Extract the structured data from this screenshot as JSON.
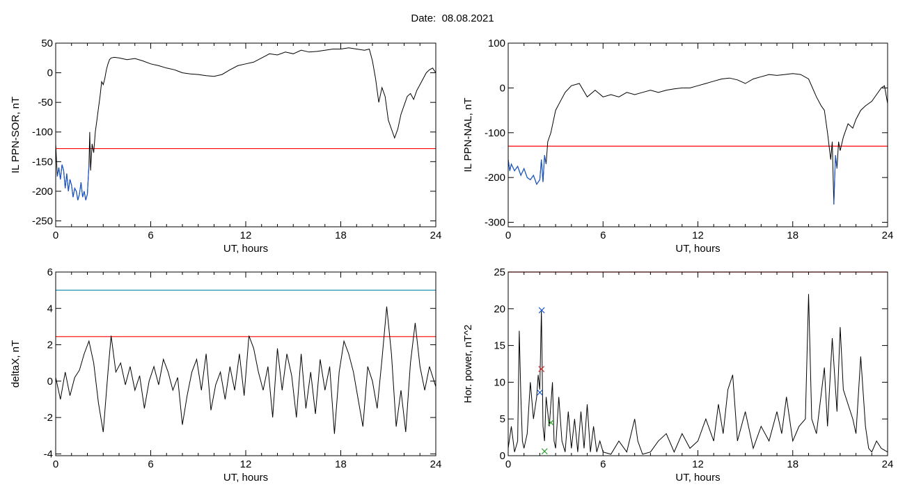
{
  "header": {
    "date_label": "Date:",
    "date_value": "08.08.2021"
  },
  "colors": {
    "threshold": "#ff0000",
    "highlight": "#1a56c8",
    "teal": "#1e8fb0",
    "green": "#2ca02c",
    "trace": "#000000"
  },
  "chart_data": [
    {
      "type": "line",
      "ylabel": "IL PPN-SOR, nT",
      "xlabel": "UT, hours",
      "xlim": [
        0,
        24
      ],
      "ylim": [
        -260,
        50
      ],
      "xticks": [
        0,
        6,
        12,
        18,
        24
      ],
      "yticks": [
        50,
        0,
        -50,
        -100,
        -150,
        -200,
        -250
      ],
      "threshold": -128,
      "highlight_below": -128,
      "series": [
        {
          "x": [
            0,
            0.1,
            0.2,
            0.3,
            0.4,
            0.5,
            0.6,
            0.7,
            0.8,
            0.9,
            1.0,
            1.1,
            1.2,
            1.3,
            1.4,
            1.5,
            1.6,
            1.7,
            1.8,
            1.9,
            2.0,
            2.1,
            2.15,
            2.2,
            2.3,
            2.4,
            2.5,
            2.6,
            2.7,
            2.8,
            2.9,
            3.0,
            3.1,
            3.2,
            3.3,
            3.4,
            3.5,
            3.7,
            4.0,
            4.5,
            5.0,
            5.5,
            6.0,
            6.5,
            7.0,
            7.5,
            8.0,
            8.5,
            9.0,
            9.5,
            10.0,
            10.5,
            11.0,
            11.5,
            12.0,
            12.5,
            13.0,
            13.5,
            14.0,
            14.5,
            15.0,
            15.5,
            16.0,
            16.5,
            17.0,
            17.5,
            18.0,
            18.5,
            19.0,
            19.5,
            19.8,
            20.0,
            20.2,
            20.4,
            20.6,
            20.8,
            21.0,
            21.2,
            21.4,
            21.6,
            21.8,
            22.0,
            22.2,
            22.4,
            22.6,
            22.8,
            23.0,
            23.2,
            23.4,
            23.6,
            23.8,
            24.0
          ],
          "y": [
            -120,
            -175,
            -160,
            -180,
            -155,
            -165,
            -195,
            -170,
            -200,
            -180,
            -190,
            -210,
            -195,
            -200,
            -215,
            -205,
            -185,
            -210,
            -200,
            -215,
            -205,
            -155,
            -100,
            -165,
            -120,
            -135,
            -100,
            -80,
            -60,
            -40,
            -15,
            -20,
            -10,
            5,
            15,
            22,
            25,
            26,
            25,
            22,
            24,
            20,
            15,
            12,
            8,
            5,
            0,
            -2,
            -3,
            -5,
            -6,
            -3,
            5,
            12,
            15,
            18,
            25,
            32,
            30,
            35,
            32,
            38,
            35,
            36,
            38,
            40,
            40,
            42,
            40,
            38,
            40,
            20,
            -10,
            -50,
            -25,
            -40,
            -80,
            -95,
            -110,
            -95,
            -70,
            -55,
            -40,
            -35,
            -45,
            -30,
            -20,
            -10,
            0,
            5,
            8,
            0
          ]
        }
      ]
    },
    {
      "type": "line",
      "ylabel": "IL PPN-NAL, nT",
      "xlabel": "UT, hours",
      "xlim": [
        0,
        24
      ],
      "ylim": [
        -310,
        100
      ],
      "xticks": [
        0,
        6,
        12,
        18,
        24
      ],
      "yticks": [
        100,
        0,
        -100,
        -200,
        -300
      ],
      "threshold": -130,
      "highlight_below": -130,
      "series": [
        {
          "x": [
            0,
            0.1,
            0.2,
            0.4,
            0.6,
            0.8,
            1.0,
            1.2,
            1.4,
            1.6,
            1.8,
            2.0,
            2.1,
            2.2,
            2.3,
            2.4,
            2.5,
            2.7,
            3.0,
            3.3,
            3.6,
            4.0,
            4.5,
            5.0,
            5.5,
            6.0,
            6.5,
            7.0,
            7.5,
            8.0,
            8.5,
            9.0,
            9.5,
            10.0,
            10.5,
            11.0,
            11.5,
            12.0,
            12.5,
            13.0,
            13.5,
            14.0,
            14.5,
            15.0,
            15.5,
            16.0,
            16.5,
            17.0,
            17.5,
            18.0,
            18.5,
            19.0,
            19.5,
            19.8,
            20.0,
            20.2,
            20.4,
            20.5,
            20.6,
            20.7,
            20.8,
            20.9,
            21.0,
            21.2,
            21.5,
            21.8,
            22.0,
            22.3,
            22.6,
            23.0,
            23.3,
            23.6,
            23.8,
            24.0
          ],
          "y": [
            -160,
            -185,
            -170,
            -185,
            -175,
            -195,
            -180,
            -200,
            -205,
            -195,
            -215,
            -205,
            -160,
            -210,
            -150,
            -170,
            -120,
            -100,
            -50,
            -30,
            -10,
            5,
            10,
            -20,
            -5,
            -20,
            -15,
            -20,
            -10,
            -15,
            -10,
            -5,
            -10,
            -5,
            -2,
            0,
            0,
            5,
            10,
            15,
            20,
            22,
            18,
            10,
            20,
            25,
            30,
            28,
            30,
            32,
            30,
            20,
            -20,
            -40,
            -50,
            -100,
            -160,
            -120,
            -260,
            -150,
            -180,
            -120,
            -140,
            -110,
            -80,
            -90,
            -70,
            -50,
            -40,
            -30,
            -15,
            0,
            5,
            -35
          ]
        }
      ]
    },
    {
      "type": "line",
      "ylabel": "deltaX, nT",
      "xlabel": "UT, hours",
      "xlim": [
        0,
        24
      ],
      "ylim": [
        -4.1,
        6
      ],
      "xticks": [
        0,
        6,
        12,
        18,
        24
      ],
      "yticks": [
        6,
        4,
        2,
        0,
        -2,
        -4
      ],
      "threshold": 2.45,
      "threshold2": 5.0,
      "series": [
        {
          "x": [
            0,
            0.3,
            0.6,
            0.9,
            1.2,
            1.5,
            1.8,
            2.1,
            2.4,
            2.7,
            3.0,
            3.3,
            3.5,
            3.8,
            4.1,
            4.4,
            4.7,
            5.0,
            5.3,
            5.6,
            5.9,
            6.2,
            6.5,
            6.8,
            7.1,
            7.4,
            7.7,
            8.0,
            8.3,
            8.6,
            8.9,
            9.2,
            9.5,
            9.8,
            10.1,
            10.4,
            10.7,
            11.0,
            11.3,
            11.6,
            11.9,
            12.2,
            12.5,
            12.8,
            13.1,
            13.4,
            13.7,
            14.0,
            14.3,
            14.6,
            14.9,
            15.2,
            15.5,
            15.8,
            16.1,
            16.4,
            16.7,
            17.0,
            17.3,
            17.6,
            17.9,
            18.2,
            18.5,
            18.8,
            19.1,
            19.4,
            19.7,
            20.0,
            20.3,
            20.6,
            20.9,
            21.2,
            21.5,
            21.8,
            22.1,
            22.4,
            22.7,
            23.0,
            23.3,
            23.6,
            24.0
          ],
          "y": [
            0.2,
            -1.0,
            0.5,
            -0.8,
            0.2,
            0.6,
            1.5,
            2.2,
            1.0,
            -1.2,
            -2.8,
            0.5,
            2.5,
            0.5,
            1.0,
            -0.2,
            0.8,
            -0.5,
            0.3,
            -1.5,
            0.0,
            0.8,
            -0.2,
            1.2,
            0.5,
            -0.5,
            0.2,
            -2.4,
            -0.8,
            0.5,
            1.2,
            -0.5,
            1.5,
            -1.6,
            -0.2,
            0.5,
            -1.0,
            0.8,
            -0.5,
            1.5,
            -0.8,
            2.5,
            1.8,
            0.5,
            -0.5,
            0.8,
            -2.0,
            1.8,
            -0.5,
            1.5,
            0.3,
            -2.0,
            1.5,
            -1.5,
            0.5,
            -1.8,
            1.2,
            -0.5,
            0.8,
            -2.9,
            0.5,
            2.2,
            1.5,
            0.5,
            -1.0,
            -2.5,
            0.8,
            0.0,
            -1.5,
            1.2,
            4.1,
            1.5,
            -2.5,
            -0.5,
            -2.8,
            1.0,
            3.2,
            0.8,
            -0.5,
            0.8,
            -0.3
          ]
        }
      ]
    },
    {
      "type": "line",
      "ylabel": "Hor. power, nT^2",
      "xlabel": "UT, hours",
      "xlim": [
        0,
        24
      ],
      "ylim": [
        0,
        25
      ],
      "xticks": [
        0,
        6,
        12,
        18,
        24
      ],
      "yticks": [
        25,
        20,
        15,
        10,
        5,
        0
      ],
      "threshold": 25,
      "series": [
        {
          "x": [
            0,
            0.2,
            0.4,
            0.6,
            0.7,
            0.8,
            0.9,
            1.0,
            1.2,
            1.4,
            1.6,
            1.8,
            1.9,
            2.0,
            2.1,
            2.2,
            2.3,
            2.4,
            2.6,
            2.8,
            2.9,
            3.0,
            3.2,
            3.4,
            3.6,
            3.8,
            4.0,
            4.2,
            4.4,
            4.6,
            4.8,
            5.0,
            5.2,
            5.4,
            5.6,
            5.8,
            6.0,
            6.5,
            7.0,
            7.5,
            8.0,
            8.2,
            8.5,
            9.0,
            9.5,
            10.0,
            10.5,
            11.0,
            11.5,
            12.0,
            12.5,
            13.0,
            13.3,
            13.6,
            13.9,
            14.2,
            14.5,
            15.0,
            15.5,
            16.0,
            16.5,
            17.0,
            17.3,
            17.6,
            18.0,
            18.4,
            18.8,
            19.0,
            19.2,
            19.5,
            20.0,
            20.2,
            20.5,
            20.8,
            21.0,
            21.2,
            21.5,
            21.8,
            22.0,
            22.3,
            22.6,
            22.8,
            23.0,
            23.3,
            23.6,
            24.0
          ],
          "y": [
            1,
            4,
            0.5,
            2,
            17,
            8,
            2,
            1,
            3,
            10,
            5,
            8,
            11,
            9,
            19.8,
            4,
            2,
            8,
            4,
            10,
            2,
            1,
            8,
            2,
            0.5,
            6,
            1,
            5,
            0.5,
            6,
            1,
            7,
            0.5,
            4,
            0.5,
            2,
            0.5,
            0.2,
            2,
            0.5,
            5,
            2,
            0.2,
            0.5,
            2,
            3,
            0.5,
            3,
            1,
            2,
            5,
            2,
            7,
            3,
            9,
            11,
            2,
            6,
            1,
            4,
            2,
            6,
            3,
            8,
            2,
            4,
            5,
            22,
            5,
            3,
            12,
            4,
            16,
            6,
            17.5,
            9,
            7,
            5,
            3,
            13.5,
            4,
            1,
            0.5,
            2,
            1,
            0.5
          ]
        }
      ],
      "markers": [
        {
          "x": 2.12,
          "y": 19.8,
          "color": "#1a56c8"
        },
        {
          "x": 2.1,
          "y": 11.8,
          "color": "#c83232"
        },
        {
          "x": 2.0,
          "y": 8.6,
          "color": "#1a56c8"
        },
        {
          "x": 2.7,
          "y": 4.5,
          "color": "#2ca02c"
        },
        {
          "x": 2.3,
          "y": 0.6,
          "color": "#2ca02c"
        }
      ]
    }
  ]
}
